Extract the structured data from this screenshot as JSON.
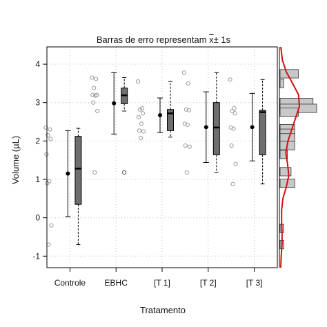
{
  "chart_data": {
    "type": "boxplot",
    "title_main": "Barras de erro representam ",
    "title_xbar": "x",
    "title_tail": "± 1s",
    "xlabel": "Tratamento",
    "ylabel": "Volume (µL)",
    "ylim": [
      -1.3,
      4.45
    ],
    "y_ticks": [
      -1,
      0,
      1,
      2,
      3,
      4
    ],
    "grid": true,
    "categories": [
      "Controle",
      "EBHC",
      "[T 1]",
      "[T 2]",
      "[T 3]"
    ],
    "points": [
      [
        2.35,
        2.3,
        2.15,
        2.05,
        1.65,
        0.95,
        0.9,
        -0.2,
        -0.7
      ],
      [
        3.65,
        3.62,
        3.38,
        3.2,
        3.2,
        3.18,
        3.0,
        2.78,
        1.18
      ],
      [
        3.55,
        2.85,
        2.82,
        2.72,
        2.62,
        2.45,
        2.27,
        2.25,
        2.08
      ],
      [
        3.78,
        3.5,
        2.82,
        2.8,
        2.45,
        2.42,
        1.88,
        1.85,
        1.18
      ],
      [
        3.6,
        2.85,
        2.78,
        2.72,
        2.35,
        2.32,
        1.88,
        1.4,
        0.88
      ]
    ],
    "mean": [
      1.15,
      2.98,
      2.67,
      2.36,
      2.36
    ],
    "sd": [
      1.12,
      0.8,
      0.45,
      0.92,
      0.88
    ],
    "box": [
      {
        "whisker_low": -0.7,
        "q1": 0.35,
        "median": 1.28,
        "q3": 2.12,
        "whisker_high": 2.33,
        "outliers": []
      },
      {
        "whisker_low": 2.78,
        "q1": 2.97,
        "median": 3.19,
        "q3": 3.38,
        "whisker_high": 3.65,
        "outliers": [
          1.18
        ]
      },
      {
        "whisker_low": 2.1,
        "q1": 2.27,
        "median": 2.72,
        "q3": 2.82,
        "whisker_high": 3.55,
        "outliers": []
      },
      {
        "whisker_low": 1.18,
        "q1": 1.64,
        "median": 2.35,
        "q3": 3.0,
        "whisker_high": 3.78,
        "outliers": []
      },
      {
        "whisker_low": 0.88,
        "q1": 1.64,
        "median": 2.75,
        "q3": 2.8,
        "whisker_high": 3.6,
        "outliers": []
      }
    ],
    "marginal_histogram": {
      "bin_centers": [
        3.75,
        3.5,
        3.0,
        2.85,
        2.75,
        2.32,
        2.2,
        2.08,
        1.88,
        1.65,
        1.2,
        0.9,
        -0.28,
        -0.7
      ],
      "counts": [
        5,
        1,
        9,
        10,
        5,
        4,
        4,
        4,
        4,
        2,
        3,
        4,
        1,
        1
      ]
    },
    "density_curve": {
      "y": [
        -1.3,
        -1.0,
        -0.7,
        -0.4,
        -0.1,
        0.2,
        0.5,
        0.8,
        1.1,
        1.4,
        1.7,
        2.0,
        2.3,
        2.6,
        2.9,
        3.2,
        3.5,
        3.8,
        4.1,
        4.45
      ],
      "density": [
        0.0,
        0.01,
        0.03,
        0.03,
        0.02,
        0.02,
        0.05,
        0.13,
        0.19,
        0.16,
        0.12,
        0.17,
        0.26,
        0.35,
        0.44,
        0.42,
        0.28,
        0.13,
        0.04,
        0.0
      ]
    },
    "colors": {
      "box_fill": "#6e6e6e",
      "points": "#9a9a9a",
      "hist_fill": "#c8c8c8",
      "density": "#d01010",
      "grid": "#c0c0c0"
    }
  }
}
